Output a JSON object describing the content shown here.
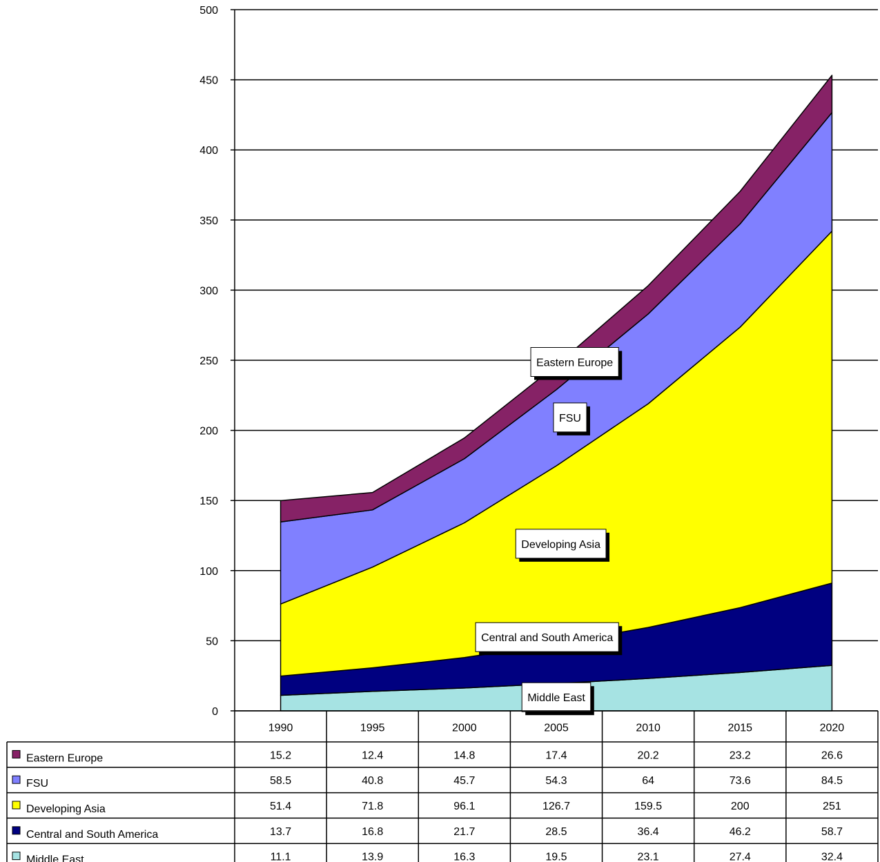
{
  "chart_data": {
    "type": "area",
    "stacked": true,
    "categories": [
      "1990",
      "1995",
      "2000",
      "2005",
      "2010",
      "2015",
      "2020"
    ],
    "ylim": [
      0,
      500
    ],
    "yticks": [
      "0",
      "50",
      "100",
      "150",
      "200",
      "250",
      "300",
      "350",
      "400",
      "450",
      "500"
    ],
    "grid": true,
    "series": [
      {
        "name": "Middle East",
        "color": "#a6e3e3",
        "values": [
          11.1,
          13.9,
          16.3,
          19.5,
          23.1,
          27.4,
          32.4
        ]
      },
      {
        "name": "Central and South America",
        "color": "#000080",
        "values": [
          13.7,
          16.8,
          21.7,
          28.5,
          36.4,
          46.2,
          58.7
        ]
      },
      {
        "name": "Developing Asia",
        "color": "#ffff00",
        "values": [
          51.4,
          71.8,
          96.1,
          126.7,
          159.5,
          200,
          251
        ]
      },
      {
        "name": "FSU",
        "color": "#8080ff",
        "values": [
          58.5,
          40.8,
          45.7,
          54.3,
          64,
          73.6,
          84.5
        ]
      },
      {
        "name": "Eastern Europe",
        "color": "#862266",
        "values": [
          15.2,
          12.4,
          14.8,
          17.4,
          20.2,
          23.2,
          26.6
        ]
      }
    ],
    "data_table_order": [
      "Eastern Europe",
      "FSU",
      "Developing Asia",
      "Central and South America",
      "Middle East"
    ]
  }
}
